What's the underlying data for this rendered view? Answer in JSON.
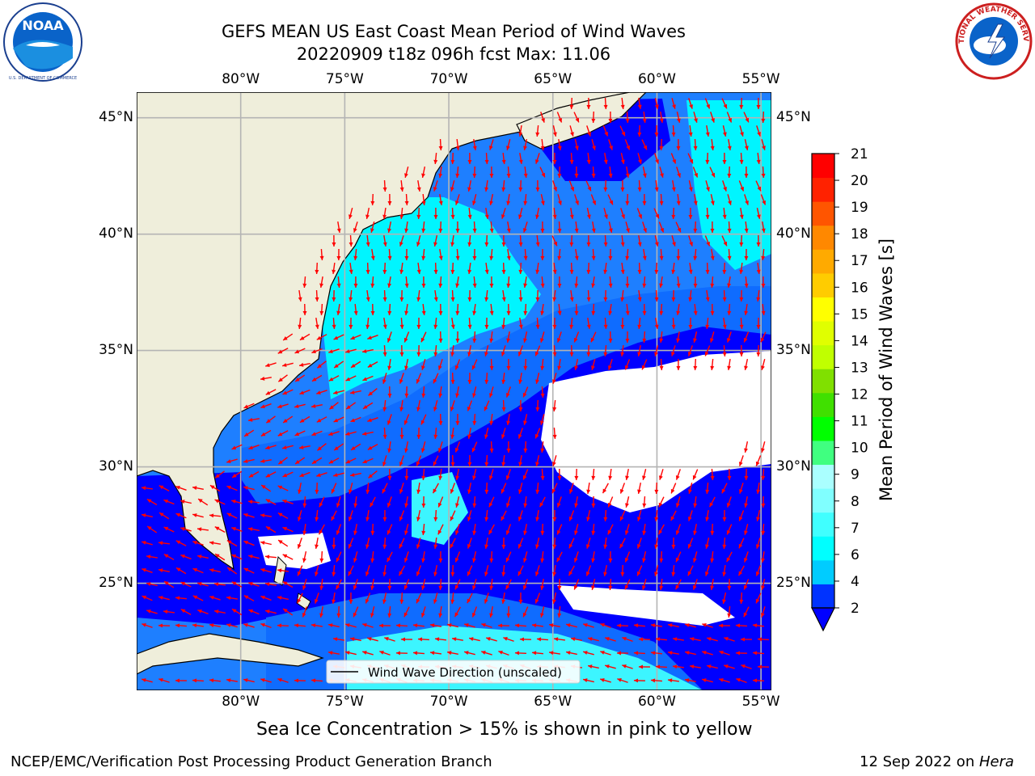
{
  "header": {
    "title_line1": "GEFS MEAN US East Coast Mean Period of Wind Waves",
    "title_line2": "20220909 t18z 096h fcst   Max: 11.06"
  },
  "logos": {
    "left": {
      "name": "noaa-logo",
      "text": "NOAA",
      "ring_text": "NATIONAL OCEANIC AND ATMOSPHERIC ADMINISTRATION · U.S. DEPARTMENT OF COMMERCE"
    },
    "right": {
      "name": "nws-logo",
      "ring_text": "NATIONAL WEATHER SERVICE"
    }
  },
  "map": {
    "lon_range": [
      -85,
      -54.5
    ],
    "lat_range": [
      20.4,
      46.1
    ],
    "lon_ticks": [
      "80°W",
      "75°W",
      "70°W",
      "65°W",
      "60°W",
      "55°W"
    ],
    "lat_ticks": [
      "45°N",
      "40°N",
      "35°N",
      "30°N",
      "25°N"
    ],
    "gridlines": true,
    "land_color": "#efeedb",
    "legend_text": "Wind Wave Direction (unscaled)",
    "legend_placement": "bottom-center",
    "arrow_color": "#ff0000"
  },
  "colorbar": {
    "label": "Mean Period of Wind Waves [s]",
    "tick_labels": [
      "2",
      "4",
      "6",
      "7",
      "8",
      "9",
      "10",
      "11",
      "12",
      "13",
      "14",
      "15",
      "16",
      "17",
      "18",
      "19",
      "20",
      "21"
    ],
    "colors": [
      "#0033ff",
      "#00ccff",
      "#00ffff",
      "#40ffff",
      "#80ffff",
      "#aaffff",
      "#40ff80",
      "#00ff00",
      "#40e000",
      "#80e000",
      "#c0ff00",
      "#e0ff00",
      "#ffff00",
      "#ffcc00",
      "#ffaa00",
      "#ff8800",
      "#ff5500",
      "#ff2200",
      "#ff0000"
    ],
    "under_color": "#0000ff"
  },
  "footer": {
    "sea_ice_note": "Sea Ice Concentration > 15% is shown in pink to yellow",
    "left_credit": "NCEP/EMC/Verification Post Processing Product Generation Branch",
    "date_text": "12 Sep 2022 on",
    "host": "Hera"
  }
}
